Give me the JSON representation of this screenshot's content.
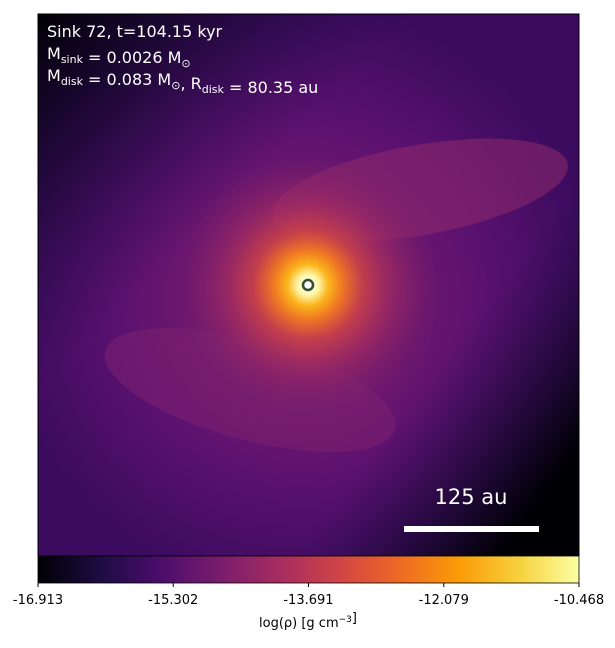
{
  "chart_data": {
    "type": "density-map",
    "annotations": [
      [
        {
          "text": "Sink 72, t=104.15 kyr"
        }
      ],
      [
        {
          "text": "M"
        },
        {
          "sub": "sink"
        },
        {
          "text": " = 0.0026 M"
        },
        {
          "sub": "⊙"
        }
      ],
      [
        {
          "text": "M"
        },
        {
          "sub": "disk"
        },
        {
          "text": " = 0.083 M"
        },
        {
          "sub": "⊙"
        },
        {
          "text": ", R"
        },
        {
          "sub": "disk"
        },
        {
          "text": " = 80.35 au"
        }
      ]
    ],
    "scale_bar_label": "125 au",
    "colorbar": {
      "label": [
        "log(ρ) [g cm",
        {
          "sup": "−3"
        },
        "]"
      ],
      "colormap": "inferno",
      "lim": [
        -16.913,
        -10.468
      ],
      "ticks": [
        -16.913,
        -15.302,
        -13.691,
        -12.079,
        -10.468
      ]
    }
  }
}
